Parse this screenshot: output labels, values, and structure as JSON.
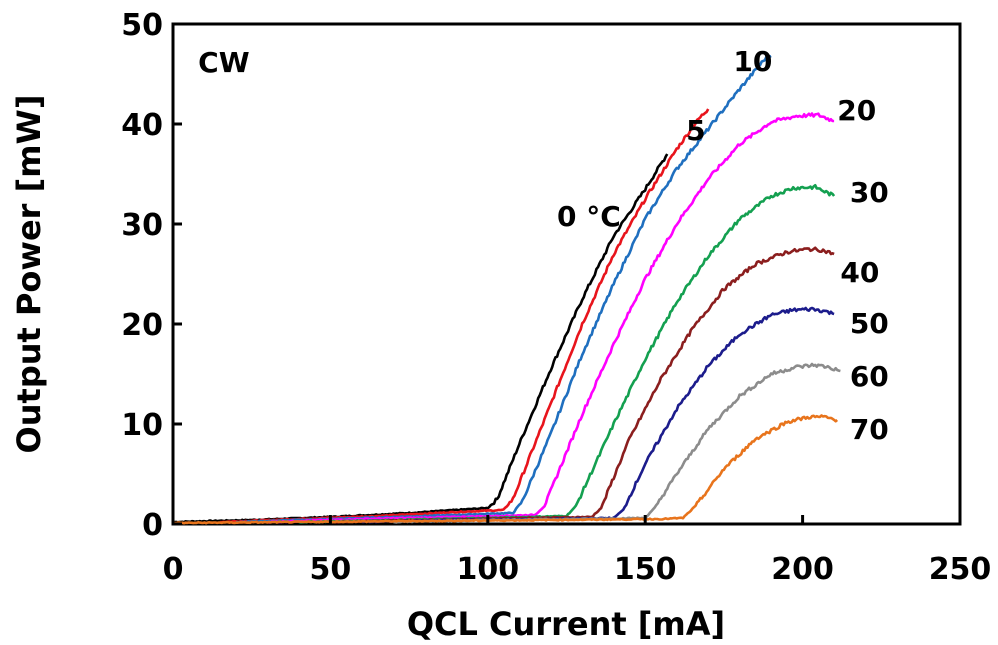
{
  "chart_data": {
    "type": "line",
    "title": "",
    "xlabel": "QCL Current [mA]",
    "ylabel": "Output Power [mW]",
    "xlim": [
      0,
      250
    ],
    "ylim": [
      0,
      50
    ],
    "x_ticks": [
      "0",
      "50",
      "100",
      "150",
      "200",
      "250"
    ],
    "y_ticks": [
      "0",
      "10",
      "20",
      "30",
      "40",
      "50"
    ],
    "grid": false,
    "legend": "none",
    "mode_label": "CW",
    "series": [
      {
        "name": "0 °C",
        "color": "#000000",
        "points": [
          [
            0,
            0.2
          ],
          [
            25,
            0.4
          ],
          [
            50,
            0.7
          ],
          [
            75,
            1.1
          ],
          [
            100,
            1.6
          ],
          [
            103,
            2.5
          ],
          [
            110,
            8
          ],
          [
            120,
            15.5
          ],
          [
            130,
            22.5
          ],
          [
            140,
            28.8
          ],
          [
            150,
            33.5
          ],
          [
            157,
            37
          ]
        ]
      },
      {
        "name": "5",
        "color": "#e8141c",
        "points": [
          [
            15,
            0.2
          ],
          [
            40,
            0.5
          ],
          [
            65,
            0.8
          ],
          [
            90,
            1.2
          ],
          [
            105,
            1.4
          ],
          [
            108,
            2.5
          ],
          [
            120,
            12
          ],
          [
            130,
            20
          ],
          [
            140,
            27
          ],
          [
            150,
            32.5
          ],
          [
            160,
            37.5
          ],
          [
            167,
            40.5
          ],
          [
            170,
            41.5
          ]
        ]
      },
      {
        "name": "10",
        "color": "#1f6fbf",
        "points": [
          [
            20,
            0.2
          ],
          [
            50,
            0.5
          ],
          [
            80,
            0.8
          ],
          [
            108,
            1.1
          ],
          [
            111,
            2.3
          ],
          [
            120,
            9
          ],
          [
            130,
            17
          ],
          [
            140,
            24
          ],
          [
            150,
            30.5
          ],
          [
            160,
            35.5
          ],
          [
            170,
            39.5
          ],
          [
            180,
            43.5
          ],
          [
            188,
            46.5
          ],
          [
            190,
            46.8
          ]
        ]
      },
      {
        "name": "20",
        "color": "#ff00ff",
        "points": [
          [
            30,
            0.2
          ],
          [
            60,
            0.5
          ],
          [
            90,
            0.7
          ],
          [
            115,
            0.9
          ],
          [
            118,
            1.8
          ],
          [
            130,
            11
          ],
          [
            140,
            18
          ],
          [
            150,
            24.5
          ],
          [
            160,
            30
          ],
          [
            170,
            34.5
          ],
          [
            180,
            38
          ],
          [
            190,
            40.2
          ],
          [
            198,
            40.8
          ],
          [
            205,
            40.9
          ],
          [
            210,
            40.3
          ]
        ]
      },
      {
        "name": "30",
        "color": "#14a050",
        "points": [
          [
            40,
            0.2
          ],
          [
            70,
            0.4
          ],
          [
            100,
            0.6
          ],
          [
            125,
            0.8
          ],
          [
            128,
            1.8
          ],
          [
            140,
            10
          ],
          [
            150,
            16.5
          ],
          [
            160,
            22.2
          ],
          [
            170,
            26.8
          ],
          [
            180,
            30.5
          ],
          [
            190,
            32.8
          ],
          [
            197,
            33.6
          ],
          [
            204,
            33.7
          ],
          [
            210,
            32.8
          ]
        ]
      },
      {
        "name": "40",
        "color": "#8b1e1e",
        "points": [
          [
            50,
            0.2
          ],
          [
            80,
            0.4
          ],
          [
            110,
            0.6
          ],
          [
            133,
            0.7
          ],
          [
            136,
            1.6
          ],
          [
            145,
            8.5
          ],
          [
            155,
            14.5
          ],
          [
            165,
            19.5
          ],
          [
            175,
            23.5
          ],
          [
            185,
            26
          ],
          [
            195,
            27.2
          ],
          [
            202,
            27.5
          ],
          [
            206,
            27.4
          ],
          [
            210,
            27
          ]
        ]
      },
      {
        "name": "50",
        "color": "#1c1c8c",
        "points": [
          [
            60,
            0.2
          ],
          [
            90,
            0.4
          ],
          [
            120,
            0.5
          ],
          [
            140,
            0.6
          ],
          [
            143,
            1.4
          ],
          [
            150,
            6
          ],
          [
            160,
            11.5
          ],
          [
            170,
            15.8
          ],
          [
            180,
            19
          ],
          [
            190,
            20.9
          ],
          [
            197,
            21.4
          ],
          [
            203,
            21.5
          ],
          [
            207,
            21.3
          ],
          [
            210,
            21
          ]
        ]
      },
      {
        "name": "60",
        "color": "#8c8c8c",
        "points": [
          [
            70,
            0.2
          ],
          [
            100,
            0.4
          ],
          [
            130,
            0.5
          ],
          [
            150,
            0.6
          ],
          [
            153,
            1.6
          ],
          [
            160,
            5
          ],
          [
            170,
            9.5
          ],
          [
            180,
            12.8
          ],
          [
            190,
            15
          ],
          [
            198,
            15.7
          ],
          [
            204,
            15.9
          ],
          [
            208,
            15.7
          ],
          [
            212,
            15.3
          ]
        ]
      },
      {
        "name": "70",
        "color": "#e8741c",
        "points": [
          [
            0,
            0.1
          ],
          [
            40,
            0.2
          ],
          [
            80,
            0.3
          ],
          [
            120,
            0.4
          ],
          [
            155,
            0.5
          ],
          [
            162,
            0.6
          ],
          [
            166,
            1.8
          ],
          [
            175,
            5.5
          ],
          [
            185,
            8.5
          ],
          [
            195,
            10.2
          ],
          [
            202,
            10.7
          ],
          [
            207,
            10.7
          ],
          [
            211,
            10.4
          ]
        ]
      }
    ],
    "labels": [
      {
        "text": "CW",
        "x": 8,
        "y": 46.2
      },
      {
        "text": "0 °C",
        "x": 122,
        "y": 30.8
      },
      {
        "text": "5",
        "x": 163,
        "y": 39.4
      },
      {
        "text": "10",
        "x": 178,
        "y": 46.3
      },
      {
        "text": "20",
        "x": 211,
        "y": 41.4
      },
      {
        "text": "30",
        "x": 215,
        "y": 33.2
      },
      {
        "text": "40",
        "x": 212,
        "y": 25.2
      },
      {
        "text": "50",
        "x": 215,
        "y": 20.1
      },
      {
        "text": "60",
        "x": 215,
        "y": 14.8
      },
      {
        "text": "70",
        "x": 215,
        "y": 9.5
      }
    ]
  }
}
